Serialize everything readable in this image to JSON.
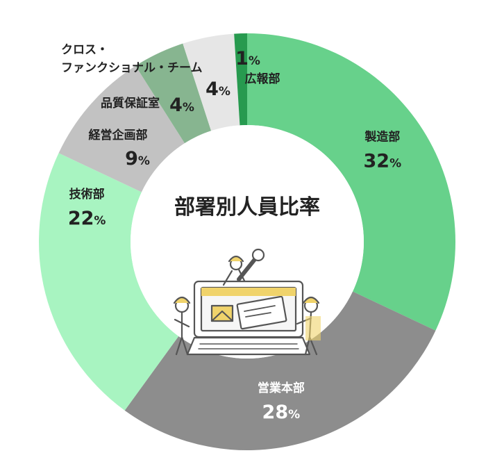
{
  "chart_data": {
    "type": "pie",
    "style": "donut",
    "title": "部署別人員比率",
    "unit": "%",
    "legend": "none",
    "direction": "clockwise-from-top",
    "slices": [
      {
        "label": "製造部",
        "value": 32,
        "color": "#67d18b",
        "text_color": "#222222"
      },
      {
        "label": "営業本部",
        "value": 28,
        "color": "#8d8d8d",
        "text_color": "#ffffff"
      },
      {
        "label": "技術部",
        "value": 22,
        "color": "#a8f4c1",
        "text_color": "#222222"
      },
      {
        "label": "経営企画部",
        "value": 9,
        "color": "#c2c2c2",
        "text_color": "#222222"
      },
      {
        "label": "品質保証室",
        "value": 4,
        "color": "#87b590",
        "text_color": "#222222"
      },
      {
        "label": [
          "クロス・",
          "ファンクショナル・チーム"
        ],
        "value": 4,
        "color": "#e6e6e6",
        "text_color": "#222222"
      },
      {
        "label": "広報部",
        "value": 1,
        "color": "#279a4f",
        "text_color": "#222222"
      }
    ]
  },
  "colors": {
    "illustration_accent": "#f0d36b",
    "illustration_line": "#555555"
  },
  "icons": [
    "workers-repairing-laptop-icon"
  ]
}
